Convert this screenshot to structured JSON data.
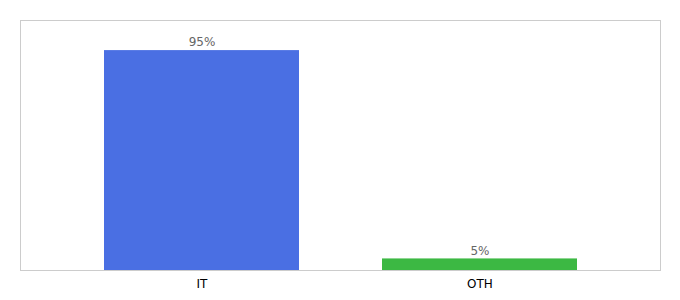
{
  "chart_data": {
    "type": "bar",
    "categories": [
      "IT",
      "OTH"
    ],
    "values": [
      95,
      5
    ],
    "value_labels": [
      "95%",
      "5%"
    ],
    "colors": [
      "#4a6fe3",
      "#3cb843"
    ],
    "ylim": [
      0,
      108
    ],
    "data_labels": true,
    "tick_labels": "x"
  }
}
